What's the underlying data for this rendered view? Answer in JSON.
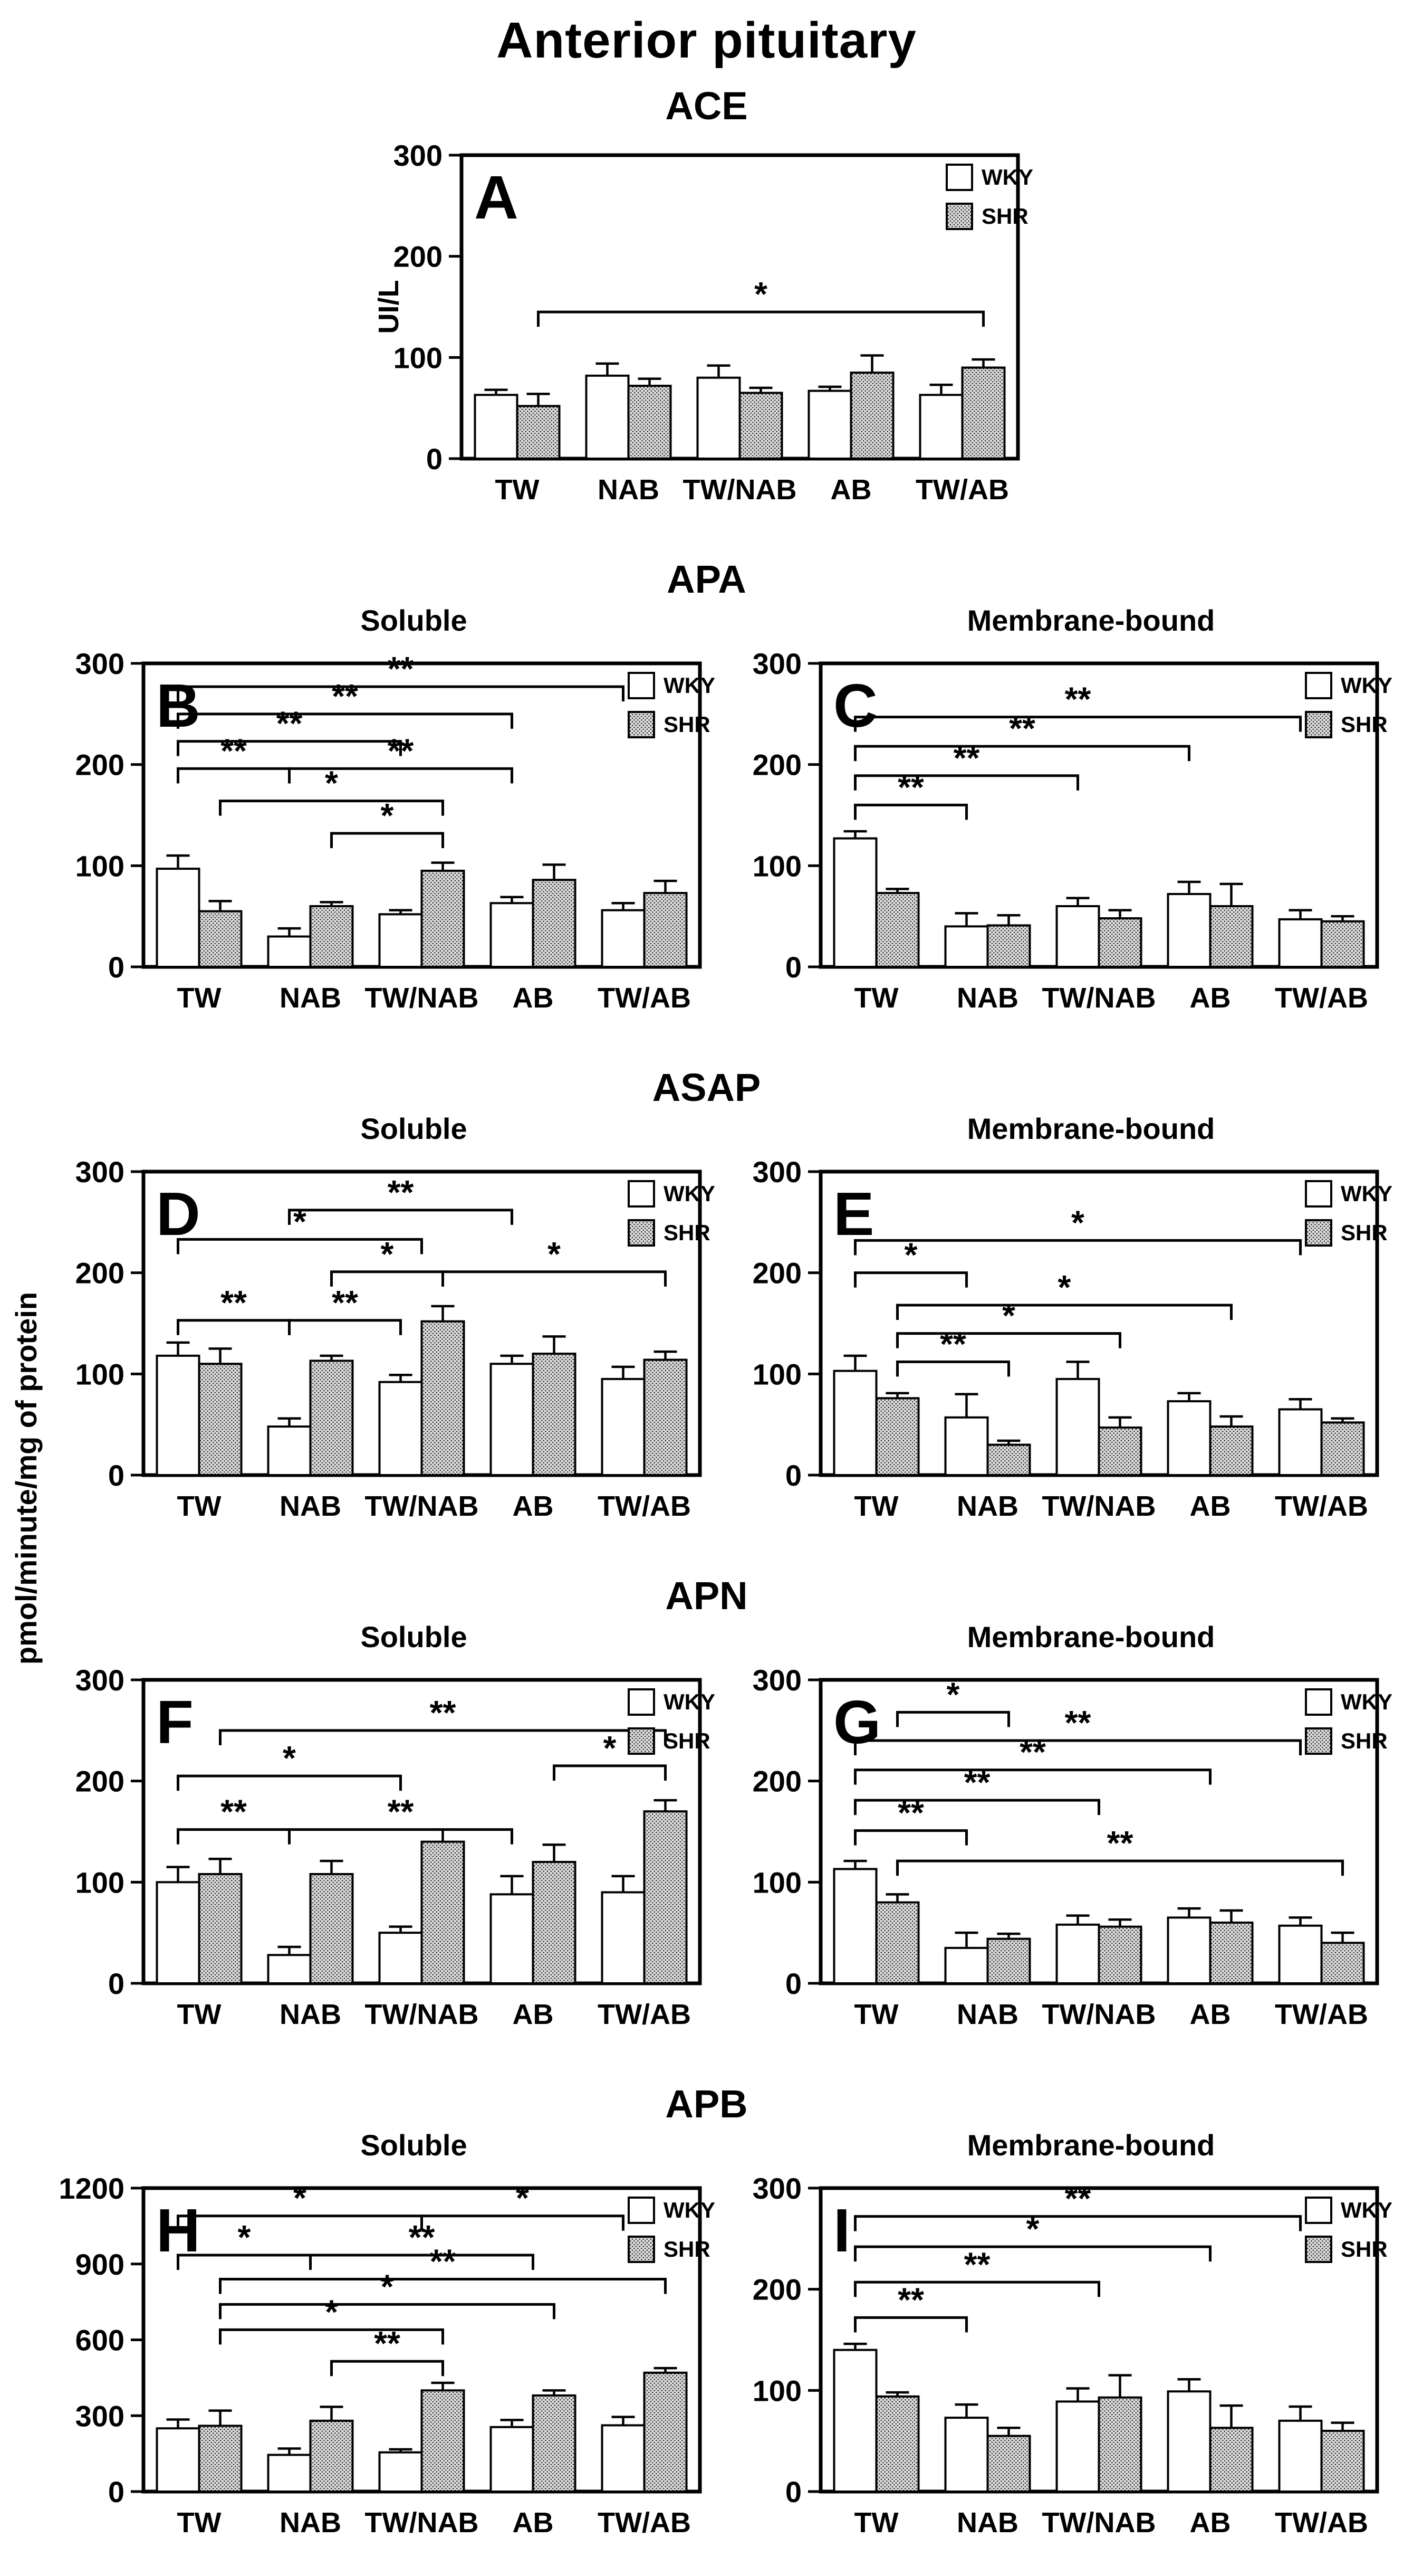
{
  "title": "Anterior pituitary",
  "shared_ylabel": "pmol/minute/mg of protein",
  "categories": [
    "TW",
    "NAB",
    "TW/NAB",
    "AB",
    "TW/AB"
  ],
  "legend": {
    "items": [
      "WKY",
      "SHR"
    ]
  },
  "colors": {
    "background": "#ffffff",
    "stroke": "#000000",
    "wky_fill": "#ffffff",
    "shr_stipple_base": "#d9d9d9",
    "shr_stipple_dot": "#000000"
  },
  "sections": [
    {
      "label": "ACE",
      "panels": [
        "A"
      ]
    },
    {
      "label": "APA",
      "panels": [
        "B",
        "C"
      ]
    },
    {
      "label": "ASAP",
      "panels": [
        "D",
        "E"
      ]
    },
    {
      "label": "APN",
      "panels": [
        "F",
        "G"
      ]
    },
    {
      "label": "APB",
      "panels": [
        "H",
        "I"
      ]
    }
  ],
  "chart_data": [
    {
      "type": "bar",
      "panel": "A",
      "section": "ACE",
      "subtitle": "",
      "ylabel": "UI/L",
      "ylim": [
        0,
        300
      ],
      "yticks": [
        0,
        100,
        200,
        300
      ],
      "grid": false,
      "legend_position": "top-right",
      "categories": [
        "TW",
        "NAB",
        "TW/NAB",
        "AB",
        "TW/AB"
      ],
      "series": [
        {
          "name": "WKY",
          "values": [
            63,
            82,
            80,
            67,
            63
          ],
          "errors": [
            5,
            12,
            12,
            4,
            10
          ]
        },
        {
          "name": "SHR",
          "values": [
            52,
            72,
            65,
            85,
            90
          ],
          "errors": [
            12,
            7,
            5,
            17,
            8
          ]
        }
      ],
      "brackets": [
        {
          "from": "0S",
          "to": "4S",
          "y": 145,
          "label": "*"
        }
      ]
    },
    {
      "type": "bar",
      "panel": "B",
      "section": "APA",
      "subtitle": "Soluble",
      "ylabel": "",
      "ylim": [
        0,
        300
      ],
      "yticks": [
        0,
        100,
        200,
        300
      ],
      "grid": false,
      "legend_position": "top-right",
      "categories": [
        "TW",
        "NAB",
        "TW/NAB",
        "AB",
        "TW/AB"
      ],
      "series": [
        {
          "name": "WKY",
          "values": [
            97,
            30,
            52,
            63,
            56
          ],
          "errors": [
            13,
            8,
            4,
            6,
            7
          ]
        },
        {
          "name": "SHR",
          "values": [
            55,
            60,
            95,
            86,
            73
          ],
          "errors": [
            10,
            4,
            8,
            15,
            12
          ]
        }
      ],
      "brackets": [
        {
          "from": "0W",
          "to": "4W",
          "y": 277,
          "label": "**"
        },
        {
          "from": "0W",
          "to": "3W",
          "y": 250,
          "label": "**"
        },
        {
          "from": "0W",
          "to": "2W",
          "y": 223,
          "label": "**"
        },
        {
          "from": "0W",
          "to": "1W",
          "y": 196,
          "label": "**"
        },
        {
          "from": "1W",
          "to": "3W",
          "y": 196,
          "label": "**"
        },
        {
          "from": "0S",
          "to": "2S",
          "y": 164,
          "label": "*"
        },
        {
          "from": "1S",
          "to": "2S",
          "y": 132,
          "label": "*"
        }
      ]
    },
    {
      "type": "bar",
      "panel": "C",
      "section": "APA",
      "subtitle": "Membrane-bound",
      "ylabel": "",
      "ylim": [
        0,
        300
      ],
      "yticks": [
        0,
        100,
        200,
        300
      ],
      "grid": false,
      "legend_position": "top-right",
      "categories": [
        "TW",
        "NAB",
        "TW/NAB",
        "AB",
        "TW/AB"
      ],
      "series": [
        {
          "name": "WKY",
          "values": [
            127,
            40,
            60,
            72,
            47
          ],
          "errors": [
            7,
            13,
            8,
            12,
            9
          ]
        },
        {
          "name": "SHR",
          "values": [
            73,
            41,
            48,
            60,
            45
          ],
          "errors": [
            4,
            10,
            8,
            22,
            5
          ]
        }
      ],
      "brackets": [
        {
          "from": "0W",
          "to": "4W",
          "y": 247,
          "label": "**"
        },
        {
          "from": "0W",
          "to": "3W",
          "y": 218,
          "label": "**"
        },
        {
          "from": "0W",
          "to": "2W",
          "y": 189,
          "label": "**"
        },
        {
          "from": "0W",
          "to": "1W",
          "y": 160,
          "label": "**"
        }
      ]
    },
    {
      "type": "bar",
      "panel": "D",
      "section": "ASAP",
      "subtitle": "Soluble",
      "ylabel": "",
      "ylim": [
        0,
        300
      ],
      "yticks": [
        0,
        100,
        200,
        300
      ],
      "grid": false,
      "legend_position": "top-right",
      "categories": [
        "TW",
        "NAB",
        "TW/NAB",
        "AB",
        "TW/AB"
      ],
      "series": [
        {
          "name": "WKY",
          "values": [
            118,
            48,
            92,
            110,
            95
          ],
          "errors": [
            13,
            8,
            7,
            8,
            12
          ]
        },
        {
          "name": "SHR",
          "values": [
            110,
            113,
            152,
            120,
            114
          ],
          "errors": [
            15,
            5,
            15,
            17,
            8
          ]
        }
      ],
      "brackets": [
        {
          "from": "1W",
          "to": "3W",
          "y": 262,
          "label": "**"
        },
        {
          "from": "0W",
          "to": "2M",
          "y": 233,
          "label": "*"
        },
        {
          "from": "1S",
          "to": "2S",
          "y": 201,
          "label": "*"
        },
        {
          "from": "2S",
          "to": "4S",
          "y": 201,
          "label": "*"
        },
        {
          "from": "0W",
          "to": "1W",
          "y": 153,
          "label": "**"
        },
        {
          "from": "1W",
          "to": "2W",
          "y": 153,
          "label": "**"
        }
      ]
    },
    {
      "type": "bar",
      "panel": "E",
      "section": "ASAP",
      "subtitle": "Membrane-bound",
      "ylabel": "",
      "ylim": [
        0,
        300
      ],
      "yticks": [
        0,
        100,
        200,
        300
      ],
      "grid": false,
      "legend_position": "top-right",
      "categories": [
        "TW",
        "NAB",
        "TW/NAB",
        "AB",
        "TW/AB"
      ],
      "series": [
        {
          "name": "WKY",
          "values": [
            103,
            57,
            95,
            73,
            65
          ],
          "errors": [
            15,
            23,
            17,
            8,
            10
          ]
        },
        {
          "name": "SHR",
          "values": [
            76,
            30,
            47,
            48,
            52
          ],
          "errors": [
            5,
            4,
            10,
            10,
            4
          ]
        }
      ],
      "brackets": [
        {
          "from": "0W",
          "to": "4W",
          "y": 232,
          "label": "*"
        },
        {
          "from": "0W",
          "to": "1W",
          "y": 200,
          "label": "*"
        },
        {
          "from": "0S",
          "to": "3S",
          "y": 168,
          "label": "*"
        },
        {
          "from": "0S",
          "to": "2S",
          "y": 140,
          "label": "*"
        },
        {
          "from": "0S",
          "to": "1S",
          "y": 112,
          "label": "**"
        }
      ]
    },
    {
      "type": "bar",
      "panel": "F",
      "section": "APN",
      "subtitle": "Soluble",
      "ylabel": "",
      "ylim": [
        0,
        300
      ],
      "yticks": [
        0,
        100,
        200,
        300
      ],
      "grid": false,
      "legend_position": "top-right",
      "categories": [
        "TW",
        "NAB",
        "TW/NAB",
        "AB",
        "TW/AB"
      ],
      "series": [
        {
          "name": "WKY",
          "values": [
            100,
            28,
            50,
            88,
            90
          ],
          "errors": [
            15,
            8,
            6,
            18,
            16
          ]
        },
        {
          "name": "SHR",
          "values": [
            108,
            108,
            140,
            120,
            170
          ],
          "errors": [
            15,
            13,
            12,
            17,
            11
          ]
        }
      ],
      "brackets": [
        {
          "from": "0S",
          "to": "4S",
          "y": 250,
          "label": "**"
        },
        {
          "from": "3S",
          "to": "4S",
          "y": 215,
          "label": "*"
        },
        {
          "from": "0W",
          "to": "2W",
          "y": 205,
          "label": "*"
        },
        {
          "from": "0W",
          "to": "1W",
          "y": 152,
          "label": "**"
        },
        {
          "from": "1W",
          "to": "3W",
          "y": 152,
          "label": "**"
        }
      ]
    },
    {
      "type": "bar",
      "panel": "G",
      "section": "APN",
      "subtitle": "Membrane-bound",
      "ylabel": "",
      "ylim": [
        0,
        300
      ],
      "yticks": [
        0,
        100,
        200,
        300
      ],
      "grid": false,
      "legend_position": "top-right",
      "categories": [
        "TW",
        "NAB",
        "TW/NAB",
        "AB",
        "TW/AB"
      ],
      "series": [
        {
          "name": "WKY",
          "values": [
            113,
            35,
            58,
            65,
            57
          ],
          "errors": [
            8,
            15,
            9,
            9,
            8
          ]
        },
        {
          "name": "SHR",
          "values": [
            80,
            44,
            56,
            60,
            40
          ],
          "errors": [
            8,
            5,
            7,
            12,
            10
          ]
        }
      ],
      "brackets": [
        {
          "from": "0S",
          "to": "1S",
          "y": 268,
          "label": "*"
        },
        {
          "from": "0W",
          "to": "4W",
          "y": 240,
          "label": "**"
        },
        {
          "from": "0W",
          "to": "3M",
          "y": 211,
          "label": "**"
        },
        {
          "from": "0W",
          "to": "2M",
          "y": 181,
          "label": "**"
        },
        {
          "from": "0W",
          "to": "1W",
          "y": 151,
          "label": "**"
        },
        {
          "from": "0S",
          "to": "4S",
          "y": 121,
          "label": "**"
        }
      ]
    },
    {
      "type": "bar",
      "panel": "H",
      "section": "APB",
      "subtitle": "Soluble",
      "ylabel": "",
      "ylim": [
        0,
        1200
      ],
      "yticks": [
        0,
        300,
        600,
        900,
        1200
      ],
      "grid": false,
      "legend_position": "top-right",
      "categories": [
        "TW",
        "NAB",
        "TW/NAB",
        "AB",
        "TW/AB"
      ],
      "series": [
        {
          "name": "WKY",
          "values": [
            250,
            145,
            155,
            255,
            262
          ],
          "errors": [
            35,
            25,
            12,
            28,
            33
          ]
        },
        {
          "name": "SHR",
          "values": [
            260,
            280,
            400,
            380,
            470
          ],
          "errors": [
            60,
            55,
            30,
            20,
            18
          ]
        }
      ],
      "brackets": [
        {
          "from": "0W",
          "to": "2M",
          "y": 1090,
          "label": "*"
        },
        {
          "from": "2M",
          "to": "4W",
          "y": 1090,
          "label": "*"
        },
        {
          "from": "0W",
          "to": "1M",
          "y": 935,
          "label": "*"
        },
        {
          "from": "1M",
          "to": "3M",
          "y": 935,
          "label": "**"
        },
        {
          "from": "0S",
          "to": "4S",
          "y": 840,
          "label": "**"
        },
        {
          "from": "0S",
          "to": "3S",
          "y": 740,
          "label": "*"
        },
        {
          "from": "0S",
          "to": "2S",
          "y": 640,
          "label": "*"
        },
        {
          "from": "1S",
          "to": "2S",
          "y": 515,
          "label": "**"
        }
      ]
    },
    {
      "type": "bar",
      "panel": "I",
      "section": "APB",
      "subtitle": "Membrane-bound",
      "ylabel": "",
      "ylim": [
        0,
        300
      ],
      "yticks": [
        0,
        100,
        200,
        300
      ],
      "grid": false,
      "legend_position": "top-right",
      "categories": [
        "TW",
        "NAB",
        "TW/NAB",
        "AB",
        "TW/AB"
      ],
      "series": [
        {
          "name": "WKY",
          "values": [
            140,
            73,
            89,
            99,
            70
          ],
          "errors": [
            6,
            13,
            13,
            12,
            14
          ]
        },
        {
          "name": "SHR",
          "values": [
            94,
            55,
            93,
            63,
            60
          ],
          "errors": [
            4,
            8,
            22,
            22,
            8
          ]
        }
      ],
      "brackets": [
        {
          "from": "0W",
          "to": "4W",
          "y": 272,
          "label": "**"
        },
        {
          "from": "0W",
          "to": "3M",
          "y": 242,
          "label": "*"
        },
        {
          "from": "0W",
          "to": "2M",
          "y": 207,
          "label": "**"
        },
        {
          "from": "0W",
          "to": "1W",
          "y": 172,
          "label": "**"
        }
      ]
    }
  ]
}
